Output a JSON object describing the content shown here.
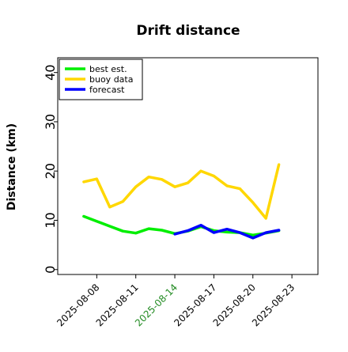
{
  "chart_data": {
    "type": "line",
    "title": "Drift distance",
    "xlabel": "",
    "ylabel": "Distance (km)",
    "ylim": [
      -1,
      43
    ],
    "yticks": [
      0,
      10,
      20,
      30,
      40
    ],
    "xticks": [
      {
        "label": "2025-08-08",
        "highlight": false
      },
      {
        "label": "2025-08-11",
        "highlight": false
      },
      {
        "label": "2025-08-14",
        "highlight": true
      },
      {
        "label": "2025-08-17",
        "highlight": false
      },
      {
        "label": "2025-08-20",
        "highlight": false
      },
      {
        "label": "2025-08-23",
        "highlight": false
      }
    ],
    "highlight_tick_color": "#228B22",
    "grid": false,
    "legend_position": "top-left",
    "series": [
      {
        "name": "best est.",
        "color": "#00ee00",
        "points": [
          {
            "x": "2025-08-07",
            "y": 10.8
          },
          {
            "x": "2025-08-08",
            "y": 9.8
          },
          {
            "x": "2025-08-09",
            "y": 8.8
          },
          {
            "x": "2025-08-10",
            "y": 7.8
          },
          {
            "x": "2025-08-11",
            "y": 7.4
          },
          {
            "x": "2025-08-12",
            "y": 8.3
          },
          {
            "x": "2025-08-13",
            "y": 8.0
          },
          {
            "x": "2025-08-14",
            "y": 7.3
          },
          {
            "x": "2025-08-15",
            "y": 7.8
          },
          {
            "x": "2025-08-16",
            "y": 8.7
          },
          {
            "x": "2025-08-17",
            "y": 7.9
          },
          {
            "x": "2025-08-18",
            "y": 7.6
          },
          {
            "x": "2025-08-19",
            "y": 7.5
          },
          {
            "x": "2025-08-20",
            "y": 7.0
          },
          {
            "x": "2025-08-21",
            "y": 7.4
          },
          {
            "x": "2025-08-22",
            "y": 7.9
          }
        ]
      },
      {
        "name": "buoy data",
        "color": "#ffd700",
        "points": [
          {
            "x": "2025-08-07",
            "y": 17.8
          },
          {
            "x": "2025-08-08",
            "y": 18.4
          },
          {
            "x": "2025-08-09",
            "y": 12.7
          },
          {
            "x": "2025-08-10",
            "y": 13.8
          },
          {
            "x": "2025-08-11",
            "y": 16.8
          },
          {
            "x": "2025-08-12",
            "y": 18.8
          },
          {
            "x": "2025-08-13",
            "y": 18.3
          },
          {
            "x": "2025-08-14",
            "y": 16.8
          },
          {
            "x": "2025-08-15",
            "y": 17.6
          },
          {
            "x": "2025-08-16",
            "y": 20.0
          },
          {
            "x": "2025-08-17",
            "y": 19.0
          },
          {
            "x": "2025-08-18",
            "y": 17.0
          },
          {
            "x": "2025-08-19",
            "y": 16.4
          },
          {
            "x": "2025-08-20",
            "y": 13.6
          },
          {
            "x": "2025-08-21",
            "y": 10.4
          },
          {
            "x": "2025-08-22",
            "y": 21.3
          }
        ]
      },
      {
        "name": "forecast",
        "color": "#0000ff",
        "points": [
          {
            "x": "2025-08-14",
            "y": 7.2
          },
          {
            "x": "2025-08-15",
            "y": 7.9
          },
          {
            "x": "2025-08-16",
            "y": 9.0
          },
          {
            "x": "2025-08-17",
            "y": 7.5
          },
          {
            "x": "2025-08-18",
            "y": 8.2
          },
          {
            "x": "2025-08-19",
            "y": 7.5
          },
          {
            "x": "2025-08-20",
            "y": 6.4
          },
          {
            "x": "2025-08-21",
            "y": 7.5
          },
          {
            "x": "2025-08-22",
            "y": 8.0
          }
        ]
      }
    ]
  }
}
